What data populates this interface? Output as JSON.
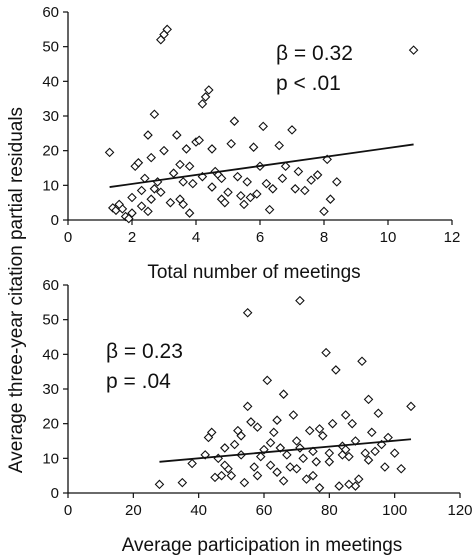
{
  "shared_ylabel": "Average three-year citation partial residuals",
  "chart_data": [
    {
      "type": "scatter",
      "xlabel": "Total number of meetings",
      "xlim": [
        0,
        12
      ],
      "ylim": [
        0,
        60
      ],
      "xticks": [
        "0",
        "2",
        "4",
        "6",
        "8",
        "10",
        "12"
      ],
      "yticks": [
        "0",
        "10",
        "20",
        "30",
        "40",
        "50",
        "60"
      ],
      "annotation": {
        "beta": "β = 0.32",
        "p": "p < .01"
      },
      "trend": {
        "x1": 1.3,
        "y1": 9.5,
        "x2": 10.8,
        "y2": 21.8
      },
      "points": [
        [
          1.3,
          19.5
        ],
        [
          1.4,
          3.5
        ],
        [
          1.5,
          2.8
        ],
        [
          1.6,
          4.0
        ],
        [
          1.7,
          3.2
        ],
        [
          1.8,
          1.0
        ],
        [
          1.9,
          0.4
        ],
        [
          2.0,
          2.0
        ],
        [
          2.0,
          6.5
        ],
        [
          2.1,
          15.5
        ],
        [
          2.2,
          16.5
        ],
        [
          2.3,
          8.5
        ],
        [
          2.3,
          4.0
        ],
        [
          2.4,
          12.0
        ],
        [
          2.5,
          2.5
        ],
        [
          2.5,
          24.5
        ],
        [
          2.6,
          18.0
        ],
        [
          2.6,
          6.0
        ],
        [
          2.7,
          30.5
        ],
        [
          2.7,
          9.0
        ],
        [
          2.8,
          11.0
        ],
        [
          2.9,
          52.0
        ],
        [
          3.0,
          53.5
        ],
        [
          3.1,
          55.0
        ],
        [
          3.0,
          20.0
        ],
        [
          3.2,
          5.0
        ],
        [
          3.3,
          13.5
        ],
        [
          3.4,
          24.5
        ],
        [
          3.5,
          16.0
        ],
        [
          3.6,
          11.0
        ],
        [
          3.6,
          4.5
        ],
        [
          3.7,
          20.5
        ],
        [
          3.8,
          15.5
        ],
        [
          3.8,
          2.0
        ],
        [
          3.9,
          10.5
        ],
        [
          4.0,
          22.5
        ],
        [
          4.1,
          23.0
        ],
        [
          4.2,
          33.5
        ],
        [
          4.2,
          12.5
        ],
        [
          4.3,
          35.5
        ],
        [
          4.4,
          37.5
        ],
        [
          4.5,
          20.5
        ],
        [
          4.5,
          9.5
        ],
        [
          4.6,
          14.0
        ],
        [
          4.7,
          13.0
        ],
        [
          4.8,
          6.0
        ],
        [
          4.9,
          5.0
        ],
        [
          5.0,
          8.0
        ],
        [
          5.1,
          22.0
        ],
        [
          5.2,
          28.5
        ],
        [
          5.3,
          12.5
        ],
        [
          5.4,
          7.0
        ],
        [
          5.5,
          4.5
        ],
        [
          5.6,
          11.0
        ],
        [
          5.7,
          6.5
        ],
        [
          5.8,
          21.0
        ],
        [
          6.0,
          15.5
        ],
        [
          6.1,
          27.0
        ],
        [
          6.2,
          10.5
        ],
        [
          6.3,
          3.0
        ],
        [
          6.4,
          9.0
        ],
        [
          6.6,
          21.5
        ],
        [
          6.8,
          15.5
        ],
        [
          7.0,
          26.0
        ],
        [
          7.2,
          14.0
        ],
        [
          7.4,
          8.5
        ],
        [
          7.6,
          11.5
        ],
        [
          7.8,
          13.0
        ],
        [
          8.0,
          2.5
        ],
        [
          8.1,
          17.5
        ],
        [
          8.2,
          6.0
        ],
        [
          8.4,
          11.0
        ],
        [
          10.8,
          49.0
        ],
        [
          1.6,
          4.5
        ],
        [
          2.9,
          8.0
        ],
        [
          3.5,
          6.0
        ],
        [
          4.8,
          12.0
        ],
        [
          5.9,
          7.5
        ],
        [
          6.7,
          12.0
        ],
        [
          7.1,
          9.0
        ]
      ]
    },
    {
      "type": "scatter",
      "xlabel": "Average participation in meetings",
      "xlim": [
        0,
        120
      ],
      "ylim": [
        0,
        60
      ],
      "xticks": [
        "0",
        "20",
        "40",
        "60",
        "80",
        "100",
        "120"
      ],
      "yticks": [
        "0",
        "10",
        "20",
        "30",
        "40",
        "50",
        "60"
      ],
      "annotation": {
        "beta": "β = 0.23",
        "p": "p = .04"
      },
      "trend": {
        "x1": 28,
        "y1": 9.0,
        "x2": 105,
        "y2": 15.5
      },
      "points": [
        [
          28,
          2.5
        ],
        [
          35,
          3.0
        ],
        [
          38,
          8.5
        ],
        [
          42,
          11.0
        ],
        [
          43,
          16.0
        ],
        [
          44,
          17.5
        ],
        [
          45,
          4.5
        ],
        [
          46,
          10.0
        ],
        [
          47,
          5.0
        ],
        [
          48,
          13.0
        ],
        [
          49,
          7.0
        ],
        [
          50,
          5.0
        ],
        [
          51,
          14.0
        ],
        [
          52,
          18.0
        ],
        [
          53,
          11.0
        ],
        [
          54,
          3.0
        ],
        [
          55,
          25.0
        ],
        [
          55,
          52.0
        ],
        [
          56,
          20.5
        ],
        [
          57,
          7.5
        ],
        [
          58,
          19.0
        ],
        [
          59,
          10.5
        ],
        [
          60,
          12.5
        ],
        [
          61,
          32.5
        ],
        [
          62,
          8.0
        ],
        [
          63,
          17.5
        ],
        [
          64,
          21.0
        ],
        [
          65,
          13.0
        ],
        [
          66,
          28.5
        ],
        [
          66,
          3.5
        ],
        [
          67,
          11.0
        ],
        [
          68,
          7.5
        ],
        [
          69,
          22.5
        ],
        [
          70,
          15.0
        ],
        [
          71,
          55.5
        ],
        [
          71,
          13.0
        ],
        [
          72,
          10.0
        ],
        [
          73,
          4.0
        ],
        [
          74,
          18.0
        ],
        [
          75,
          12.0
        ],
        [
          76,
          9.0
        ],
        [
          77,
          1.5
        ],
        [
          78,
          16.5
        ],
        [
          79,
          40.5
        ],
        [
          80,
          11.5
        ],
        [
          81,
          20.0
        ],
        [
          82,
          35.5
        ],
        [
          83,
          2.0
        ],
        [
          84,
          13.5
        ],
        [
          85,
          12.5
        ],
        [
          85,
          22.5
        ],
        [
          86,
          10.5
        ],
        [
          87,
          20.0
        ],
        [
          88,
          15.0
        ],
        [
          89,
          4.0
        ],
        [
          90,
          38.0
        ],
        [
          91,
          11.5
        ],
        [
          92,
          27.0
        ],
        [
          93,
          17.5
        ],
        [
          94,
          12.0
        ],
        [
          95,
          23.0
        ],
        [
          96,
          14.0
        ],
        [
          97,
          7.5
        ],
        [
          98,
          16.0
        ],
        [
          100,
          11.5
        ],
        [
          102,
          7.0
        ],
        [
          105,
          25.0
        ],
        [
          86,
          2.5
        ],
        [
          88,
          2.0
        ],
        [
          64,
          6.0
        ],
        [
          58,
          5.0
        ],
        [
          75,
          5.0
        ],
        [
          80,
          9.0
        ],
        [
          70,
          7.0
        ],
        [
          62,
          14.5
        ],
        [
          53,
          16.5
        ],
        [
          48,
          8.0
        ],
        [
          92,
          9.5
        ],
        [
          84,
          11.0
        ],
        [
          77,
          18.5
        ]
      ]
    }
  ]
}
